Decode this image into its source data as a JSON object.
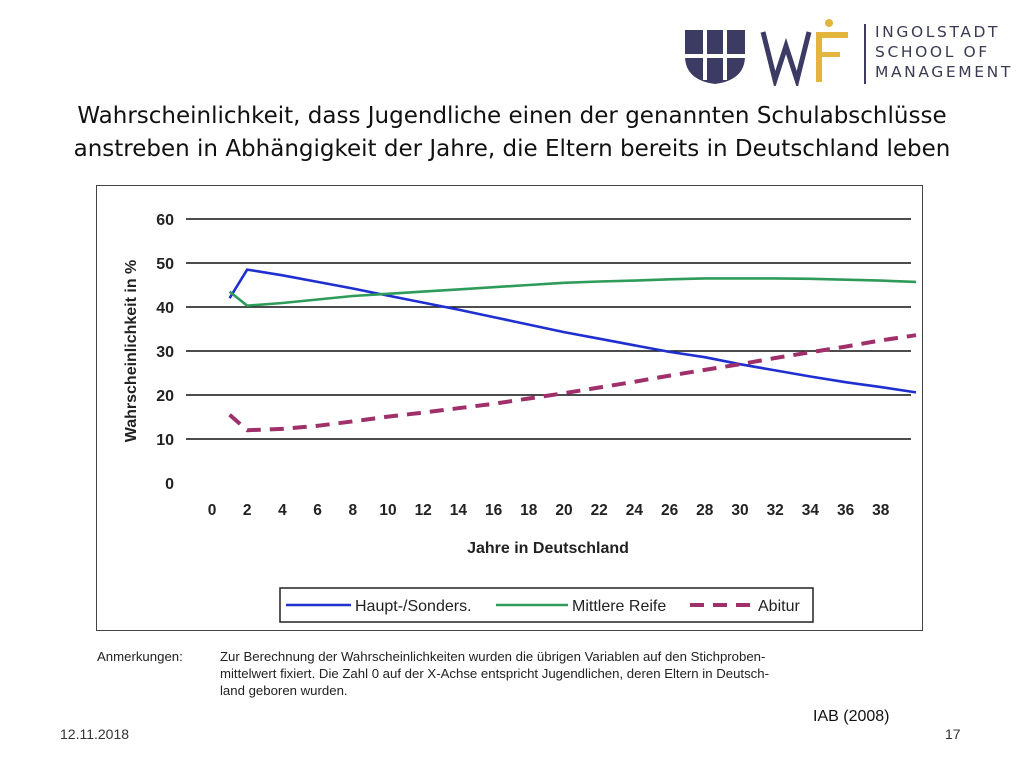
{
  "logo": {
    "lines": [
      "INGOLSTADT",
      "SCHOOL OF",
      "MANAGEMENT"
    ],
    "colors": {
      "navy": "#3b3b63",
      "gold": "#e3b53d"
    }
  },
  "slide": {
    "title_line1": "Wahrscheinlichkeit, dass Jugendliche einen der genannten Schulabschlüsse",
    "title_line2": "anstreben in Abhängigkeit der Jahre, die Eltern bereits in Deutschland leben",
    "notes_label": "Anmerkungen:",
    "notes_line1": "Zur Berechnung der Wahrscheinlichkeiten wurden die übrigen Variablen auf den Stichproben-",
    "notes_line2": "mittelwert fixiert. Die Zahl 0 auf der X-Achse entspricht Jugendlichen, deren Eltern in Deutsch-",
    "notes_line3": "land geboren wurden.",
    "source": "IAB (2008)",
    "date": "12.11.2018",
    "page": "17"
  },
  "chart_data": {
    "type": "line",
    "xlabel": "Jahre in Deutschland",
    "ylabel": "Wahrscheinlichkeit in %",
    "ylim": [
      0,
      60
    ],
    "yticks": [
      0,
      10,
      20,
      30,
      40,
      50,
      60
    ],
    "xlim": [
      0,
      40
    ],
    "xticks": [
      0,
      2,
      4,
      6,
      8,
      10,
      12,
      14,
      16,
      18,
      20,
      22,
      24,
      26,
      28,
      30,
      32,
      34,
      36,
      38
    ],
    "grid": "horizontal",
    "legend_position": "bottom",
    "series": [
      {
        "name": "Haupt-/Sonders.",
        "color": "#1f2fd0",
        "style": "solid",
        "x": [
          1,
          2,
          4,
          6,
          8,
          10,
          12,
          14,
          16,
          18,
          20,
          22,
          24,
          26,
          28,
          30,
          32,
          34,
          36,
          38,
          40
        ],
        "y": [
          42,
          48.5,
          47.2,
          45.7,
          44.2,
          42.6,
          41,
          39.4,
          37.7,
          36,
          34.3,
          32.8,
          31.3,
          29.8,
          28.6,
          27,
          25.6,
          24.2,
          22.9,
          21.8,
          20.6
        ]
      },
      {
        "name": "Mittlere Reife",
        "color": "#2e9b5a",
        "style": "solid",
        "x": [
          1,
          2,
          4,
          6,
          8,
          10,
          12,
          14,
          16,
          18,
          20,
          22,
          24,
          26,
          28,
          30,
          32,
          34,
          36,
          38,
          40
        ],
        "y": [
          43.5,
          40.3,
          40.9,
          41.7,
          42.5,
          43,
          43.5,
          44,
          44.5,
          45,
          45.5,
          45.8,
          46,
          46.3,
          46.5,
          46.5,
          46.5,
          46.4,
          46.2,
          46,
          45.7
        ]
      },
      {
        "name": "Abitur",
        "color": "#a0306a",
        "style": "dashed",
        "x": [
          1,
          2,
          4,
          6,
          8,
          10,
          12,
          14,
          16,
          18,
          20,
          22,
          24,
          26,
          28,
          30,
          32,
          34,
          36,
          38,
          40
        ],
        "y": [
          15.5,
          12,
          12.3,
          13,
          14,
          15.1,
          16,
          17,
          18,
          19.2,
          20.4,
          21.7,
          23,
          24.4,
          25.7,
          27,
          28.4,
          29.7,
          31,
          32.4,
          33.6
        ]
      }
    ]
  }
}
